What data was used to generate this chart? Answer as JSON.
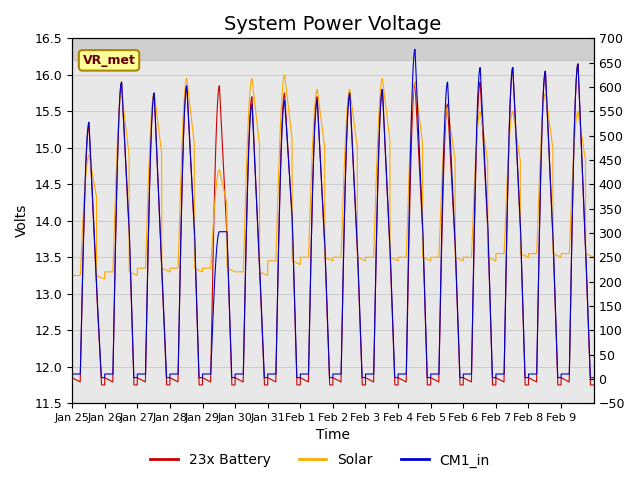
{
  "title": "System Power Voltage",
  "xlabel": "Time",
  "ylabel": "Volts",
  "ylim_left": [
    11.5,
    16.5
  ],
  "ylim_right": [
    -50,
    700
  ],
  "yticks_left": [
    11.5,
    12.0,
    12.5,
    13.0,
    13.5,
    14.0,
    14.5,
    15.0,
    15.5,
    16.0,
    16.5
  ],
  "yticks_right": [
    -50,
    0,
    50,
    100,
    150,
    200,
    250,
    300,
    350,
    400,
    450,
    500,
    550,
    600,
    650,
    700
  ],
  "xtick_labels": [
    "Jan 25",
    "Jan 26",
    "Jan 27",
    "Jan 28",
    "Jan 29",
    "Jan 30",
    "Jan 31",
    "Feb 1",
    "Feb 2",
    "Feb 3",
    "Feb 4",
    "Feb 5",
    "Feb 6",
    "Feb 7",
    "Feb 8",
    "Feb 9"
  ],
  "grid_color": "#cccccc",
  "bg_color": "#e8e8e8",
  "shade_above": 16.2,
  "vr_met_label": "VR_met",
  "legend_entries": [
    "23x Battery",
    "Solar",
    "CM1_in"
  ],
  "line_colors": [
    "#cc0000",
    "#ffaa00",
    "#0000cc"
  ],
  "title_fontsize": 14,
  "label_fontsize": 10,
  "tick_fontsize": 9,
  "battery_base": 11.85,
  "cm1_base": 11.9,
  "battery_peak": [
    13.05,
    13.85,
    13.3,
    13.85,
    13.8,
    13.35,
    14.0,
    13.65,
    13.6,
    13.6,
    13.9,
    13.65,
    13.9,
    13.9,
    13.75,
    13.6
  ],
  "battery_high": [
    15.3,
    15.9,
    15.75,
    15.85,
    15.85,
    15.7,
    15.75,
    15.7,
    15.75,
    15.8,
    15.9,
    15.6,
    15.9,
    16.1,
    16.05,
    16.15
  ],
  "solar_base": [
    13.25,
    13.3,
    13.35,
    13.35,
    13.35,
    13.3,
    13.45,
    13.5,
    13.5,
    13.5,
    13.5,
    13.5,
    13.5,
    13.55,
    13.55,
    13.55
  ],
  "solar_peak": [
    14.9,
    15.75,
    15.75,
    15.95,
    14.7,
    15.95,
    16.0,
    15.8,
    15.8,
    15.95,
    15.9,
    15.55,
    15.5,
    15.5,
    15.75,
    15.5
  ],
  "cm1_peak": [
    15.35,
    15.9,
    15.75,
    15.85,
    13.85,
    15.6,
    15.65,
    15.65,
    15.75,
    15.8,
    16.35,
    15.9,
    16.1,
    16.1,
    16.05,
    16.15
  ]
}
